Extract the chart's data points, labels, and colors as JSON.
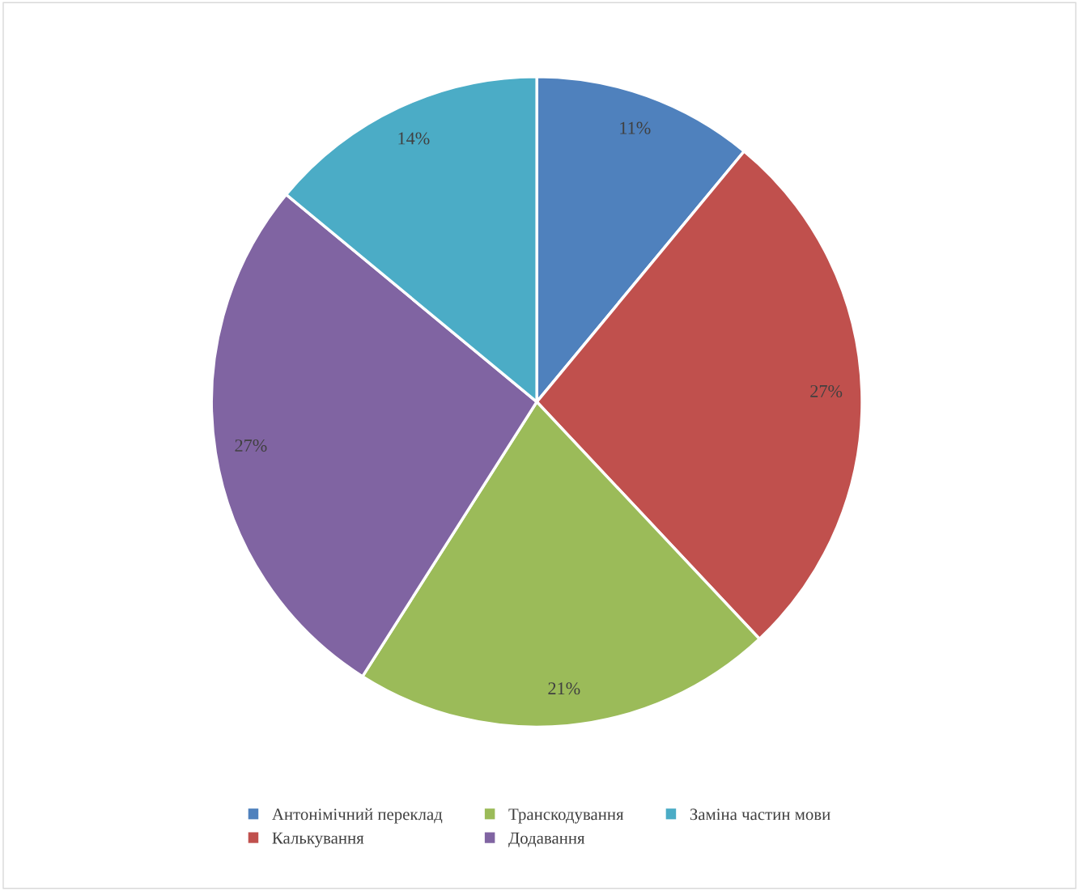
{
  "chart_data": {
    "type": "pie",
    "categories": [
      "Антонімічний переклад",
      "Калькування",
      "Транскодування",
      "Додавання",
      "Заміна частин мови"
    ],
    "values": [
      11,
      27,
      21,
      27,
      14
    ],
    "colors": [
      "#4f81bd",
      "#c0504d",
      "#9bbb59",
      "#8064a2",
      "#4bacc6"
    ],
    "value_labels": [
      "11%",
      "27%",
      "21%",
      "27%",
      "14%"
    ],
    "legend": "bottom"
  }
}
